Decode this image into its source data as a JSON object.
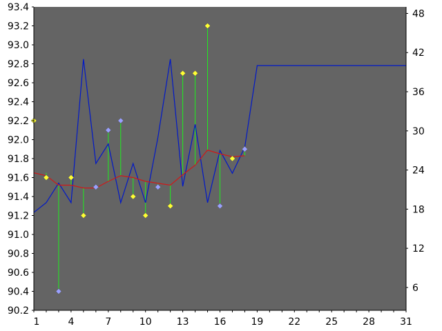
{
  "chart_data": {
    "type": "line",
    "colors": {
      "plot_background": "#646464",
      "page_background": "#ffffff",
      "line_blue": "#0018c8",
      "line_red": "#d01818",
      "stem_green": "#1ef01e",
      "marker_yellow": "#ffff33",
      "marker_lavender": "#9aa0ff"
    },
    "x_axis": {
      "range": [
        1,
        31
      ],
      "ticks": [
        "1",
        "4",
        "7",
        "10",
        "13",
        "16",
        "19",
        "22",
        "25",
        "28",
        "31"
      ]
    },
    "y_left": {
      "range": [
        90.2,
        93.4
      ],
      "ticks": [
        "90.2",
        "90.4",
        "90.6",
        "90.8",
        "91.0",
        "91.2",
        "91.4",
        "91.6",
        "91.8",
        "92.0",
        "92.2",
        "92.4",
        "92.6",
        "92.8",
        "93.0",
        "93.2",
        "93.4"
      ]
    },
    "y_right": {
      "range": [
        2.5,
        49
      ],
      "ticks": [
        "6",
        "12",
        "18",
        "24",
        "30",
        "36",
        "42",
        "48"
      ]
    },
    "series": [
      {
        "kind": "line",
        "axis": "right",
        "color_key": "line_blue",
        "x": [
          1,
          2,
          3,
          4,
          5,
          6,
          7,
          8,
          9,
          10,
          11,
          12,
          13,
          14,
          15,
          16,
          17,
          18,
          19,
          20,
          21,
          22,
          23,
          24,
          25,
          26,
          27,
          28,
          29,
          30,
          31
        ],
        "values": [
          17.5,
          19,
          22,
          19,
          41,
          25,
          28,
          19,
          25,
          19,
          29,
          41,
          21.5,
          31,
          19,
          27,
          23.5,
          27.5,
          40,
          40,
          40,
          40,
          40,
          40,
          40,
          40,
          40,
          40,
          40,
          40,
          40
        ]
      },
      {
        "kind": "line",
        "axis": "left",
        "color_key": "line_red",
        "x": [
          1,
          2,
          3,
          4,
          5,
          6,
          7,
          8,
          9,
          10,
          11,
          12,
          13,
          14,
          15,
          16,
          17,
          18
        ],
        "values": [
          91.65,
          91.62,
          91.52,
          91.52,
          91.49,
          91.49,
          91.56,
          91.62,
          91.6,
          91.56,
          91.54,
          91.52,
          91.63,
          91.73,
          91.89,
          91.85,
          91.82,
          91.83
        ]
      },
      {
        "kind": "stem",
        "axis": "left",
        "x": [
          1,
          2,
          3,
          4,
          5,
          6,
          7,
          8,
          9,
          10,
          11,
          12,
          13,
          14,
          15,
          16,
          17,
          18
        ],
        "top": [
          92.2,
          91.65,
          91.52,
          91.6,
          91.49,
          91.5,
          92.1,
          92.2,
          91.6,
          91.56,
          91.5,
          91.52,
          92.7,
          92.7,
          93.2,
          91.85,
          91.8,
          91.9
        ],
        "bottom": [
          91.65,
          91.6,
          90.4,
          91.52,
          91.2,
          91.49,
          91.56,
          91.62,
          91.4,
          91.2,
          91.54,
          91.3,
          91.63,
          91.73,
          91.89,
          91.3,
          91.82,
          91.83
        ]
      },
      {
        "kind": "markers",
        "axis": "left",
        "points": [
          {
            "x": 1,
            "y": 92.2,
            "color_key": "marker_yellow"
          },
          {
            "x": 2,
            "y": 91.6,
            "color_key": "marker_yellow"
          },
          {
            "x": 3,
            "y": 90.4,
            "color_key": "marker_lavender"
          },
          {
            "x": 4,
            "y": 91.6,
            "color_key": "marker_yellow"
          },
          {
            "x": 5,
            "y": 91.2,
            "color_key": "marker_yellow"
          },
          {
            "x": 6,
            "y": 91.5,
            "color_key": "marker_lavender"
          },
          {
            "x": 7,
            "y": 92.1,
            "color_key": "marker_lavender"
          },
          {
            "x": 8,
            "y": 92.2,
            "color_key": "marker_lavender"
          },
          {
            "x": 9,
            "y": 91.4,
            "color_key": "marker_yellow"
          },
          {
            "x": 10,
            "y": 91.2,
            "color_key": "marker_yellow"
          },
          {
            "x": 11,
            "y": 91.5,
            "color_key": "marker_lavender"
          },
          {
            "x": 12,
            "y": 91.3,
            "color_key": "marker_yellow"
          },
          {
            "x": 13,
            "y": 92.7,
            "color_key": "marker_yellow"
          },
          {
            "x": 14,
            "y": 92.7,
            "color_key": "marker_yellow"
          },
          {
            "x": 15,
            "y": 93.2,
            "color_key": "marker_yellow"
          },
          {
            "x": 16,
            "y": 91.3,
            "color_key": "marker_lavender"
          },
          {
            "x": 17,
            "y": 91.8,
            "color_key": "marker_yellow"
          },
          {
            "x": 18,
            "y": 91.9,
            "color_key": "marker_lavender"
          }
        ]
      }
    ],
    "grid": false,
    "legend": "none"
  }
}
